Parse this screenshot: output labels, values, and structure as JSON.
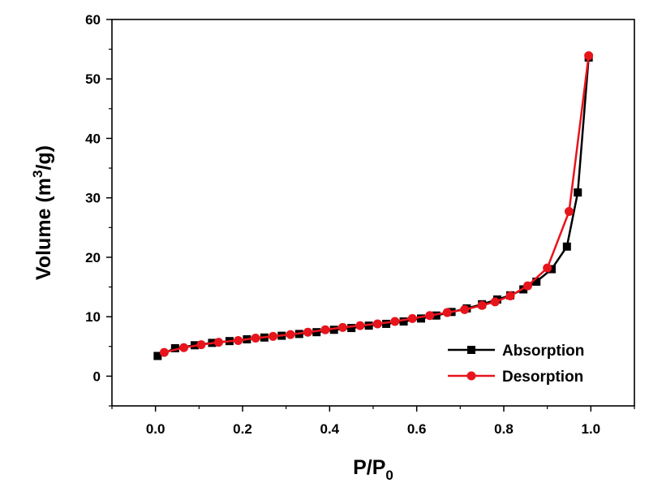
{
  "chart_data": {
    "type": "line",
    "xlabel": {
      "main": "P/P",
      "sub": "0"
    },
    "ylabel": {
      "main": "Volume (m",
      "sup": "3",
      "tail": "/g)"
    },
    "xlim": [
      -0.1,
      1.1
    ],
    "ylim": [
      -5,
      60
    ],
    "x_ticks": [
      0.0,
      0.2,
      0.4,
      0.6,
      0.8,
      1.0
    ],
    "x_tick_labels": [
      "0.0",
      "0.2",
      "0.4",
      "0.6",
      "0.8",
      "1.0"
    ],
    "y_ticks": [
      0,
      10,
      20,
      30,
      40,
      50,
      60
    ],
    "y_tick_labels": [
      "0",
      "10",
      "20",
      "30",
      "40",
      "50",
      "60"
    ],
    "grid": false,
    "legend_position": "bottom-right",
    "series": [
      {
        "name": "Absorption",
        "color": "#000000",
        "marker": "square",
        "x": [
          0.005,
          0.045,
          0.09,
          0.13,
          0.17,
          0.21,
          0.25,
          0.29,
          0.33,
          0.37,
          0.41,
          0.45,
          0.49,
          0.53,
          0.57,
          0.61,
          0.645,
          0.68,
          0.715,
          0.75,
          0.785,
          0.815,
          0.845,
          0.875,
          0.91,
          0.945,
          0.97,
          0.995
        ],
        "y": [
          3.4,
          4.7,
          5.2,
          5.6,
          5.9,
          6.2,
          6.5,
          6.8,
          7.1,
          7.4,
          7.8,
          8.1,
          8.5,
          8.8,
          9.2,
          9.7,
          10.2,
          10.8,
          11.4,
          12.1,
          12.9,
          13.6,
          14.6,
          15.9,
          18.0,
          21.8,
          30.9,
          53.6
        ]
      },
      {
        "name": "Desorption",
        "color": "#e8141c",
        "marker": "circle",
        "x": [
          0.02,
          0.065,
          0.105,
          0.145,
          0.19,
          0.23,
          0.27,
          0.31,
          0.35,
          0.39,
          0.43,
          0.47,
          0.51,
          0.55,
          0.59,
          0.63,
          0.67,
          0.71,
          0.75,
          0.78,
          0.815,
          0.855,
          0.9,
          0.95,
          0.995
        ],
        "y": [
          4.0,
          4.8,
          5.3,
          5.7,
          6.0,
          6.4,
          6.7,
          7.0,
          7.4,
          7.8,
          8.2,
          8.5,
          8.8,
          9.2,
          9.7,
          10.2,
          10.7,
          11.2,
          11.9,
          12.5,
          13.5,
          15.2,
          18.2,
          27.7,
          53.9
        ]
      }
    ]
  }
}
